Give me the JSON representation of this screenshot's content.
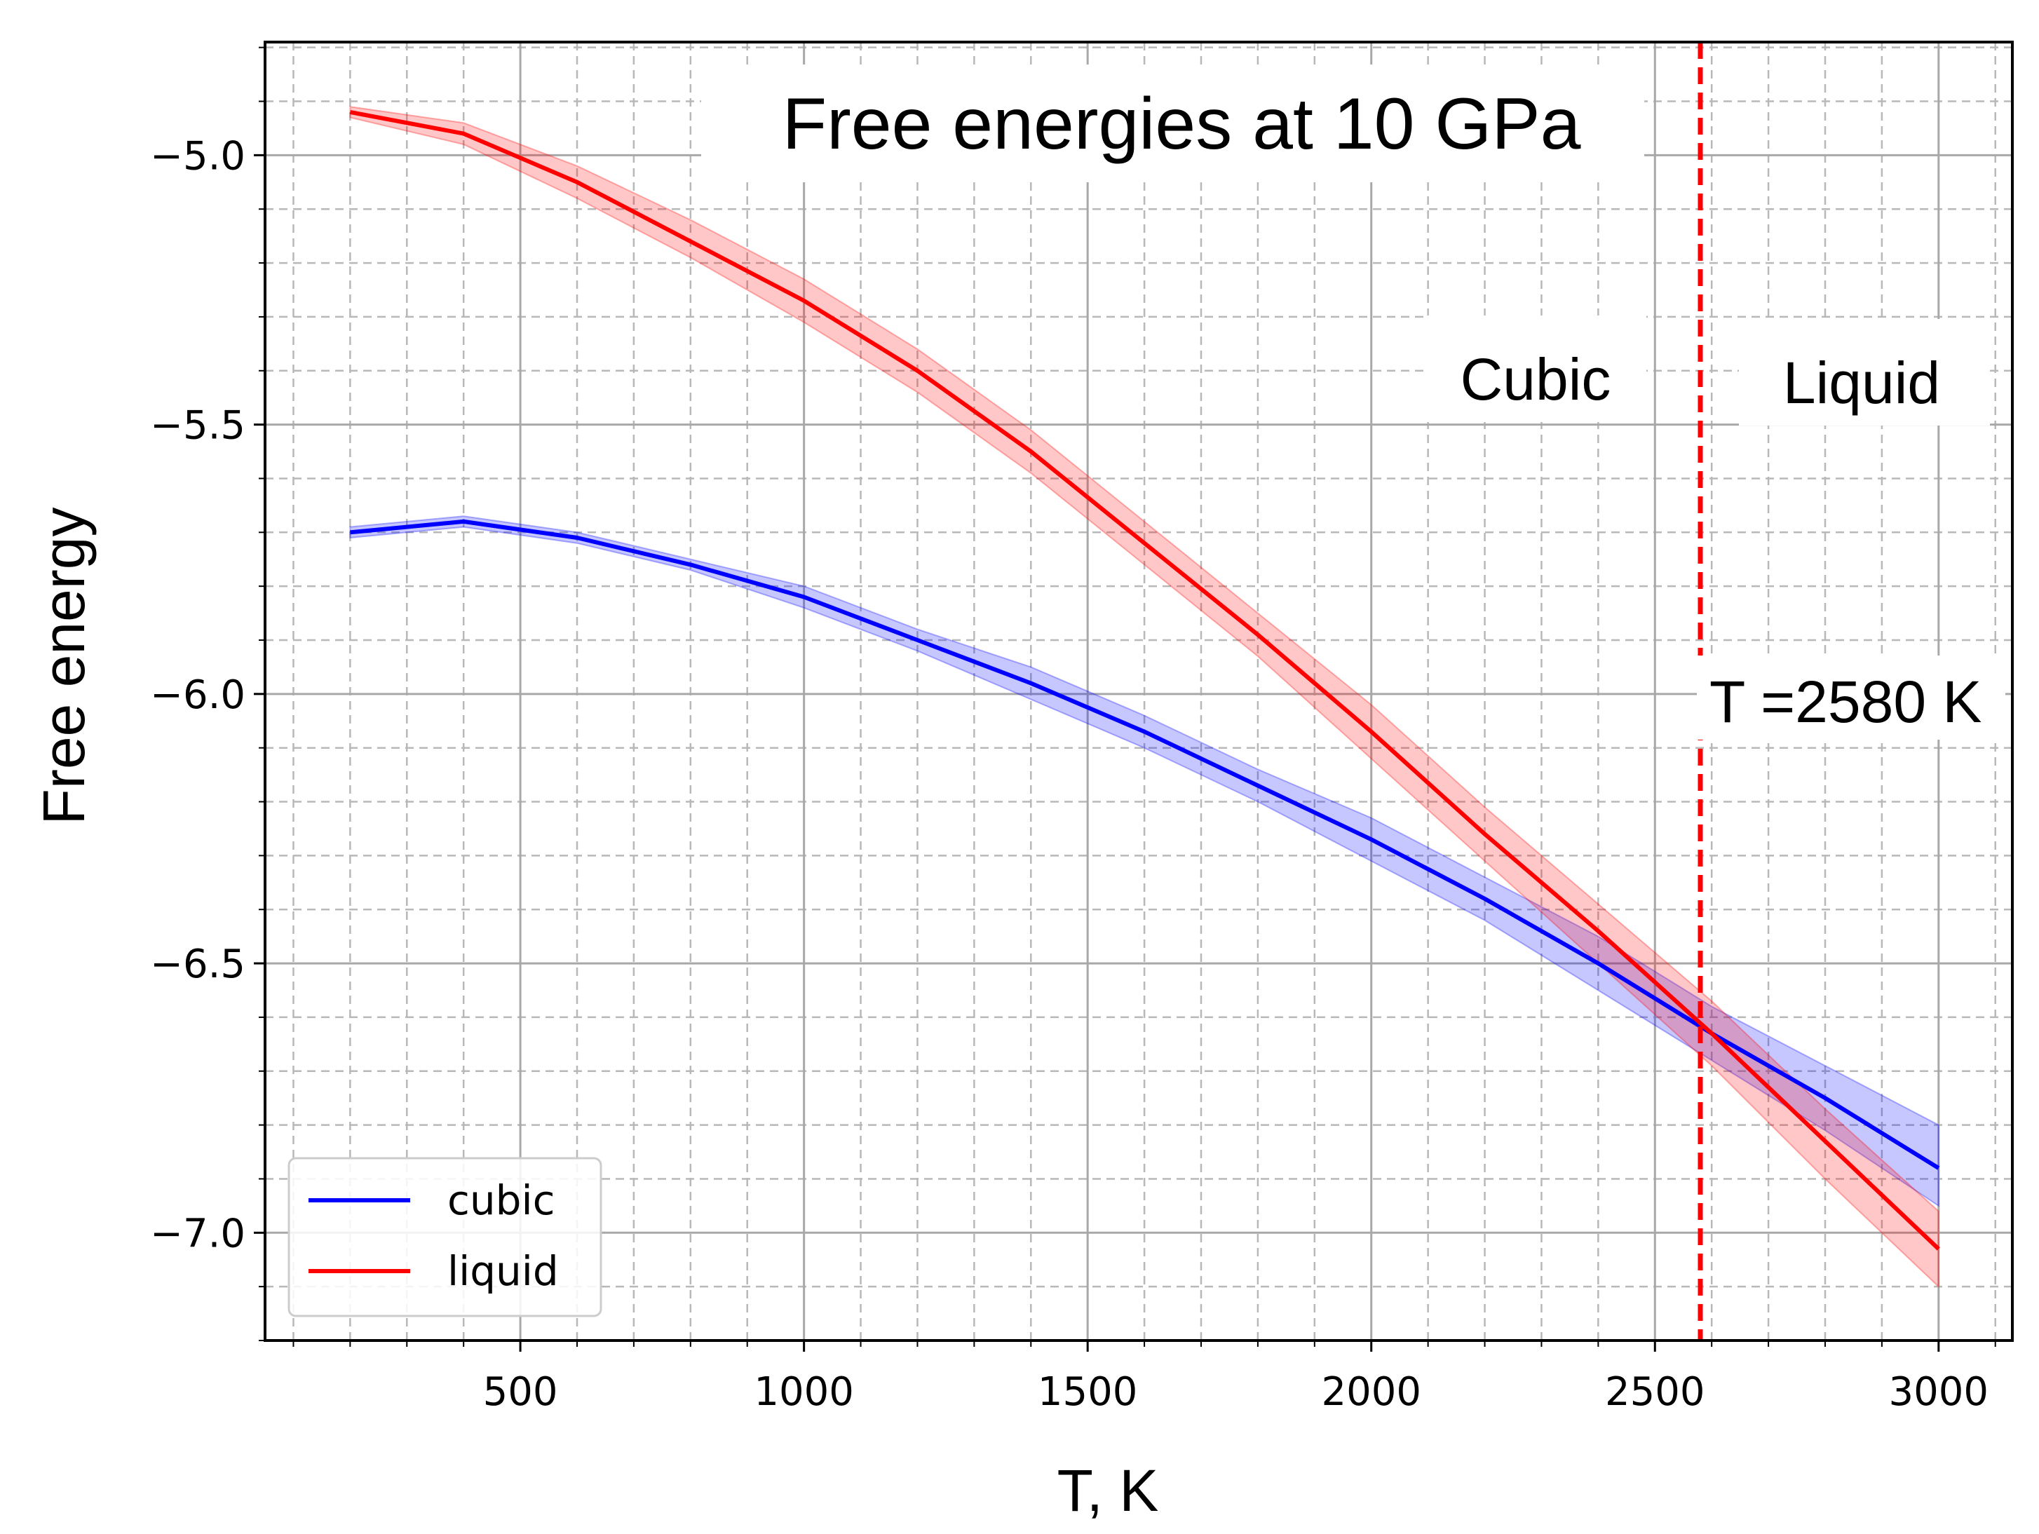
{
  "chart_data": {
    "type": "line",
    "title": "Free energies at 10 GPa",
    "xlabel": "T, K",
    "ylabel": "Free energy",
    "xlim": [
      50,
      3130
    ],
    "ylim": [
      -7.2,
      -4.79
    ],
    "xticks": [
      500,
      1000,
      1500,
      2000,
      2500,
      3000
    ],
    "xtick_labels": [
      "500",
      "1000",
      "1500",
      "2000",
      "2500",
      "3000"
    ],
    "yticks": [
      -5.0,
      -5.5,
      -6.0,
      -6.5,
      -7.0
    ],
    "ytick_labels": [
      "−5.0",
      "−5.5",
      "−6.0",
      "−6.5",
      "−7.0"
    ],
    "grid": true,
    "legend_position": "lower-left",
    "series": [
      {
        "name": "cubic",
        "color": "#0000ff",
        "band_color": "#0000ff",
        "x": [
          200,
          400,
          600,
          800,
          1000,
          1200,
          1400,
          1600,
          1800,
          2000,
          2200,
          2400,
          2600,
          2800,
          3000
        ],
        "y": [
          -5.7,
          -5.68,
          -5.71,
          -5.76,
          -5.82,
          -5.9,
          -5.98,
          -6.07,
          -6.17,
          -6.27,
          -6.38,
          -6.5,
          -6.63,
          -6.75,
          -6.88
        ],
        "y_lower": [
          -5.71,
          -5.69,
          -5.72,
          -5.77,
          -5.84,
          -5.92,
          -6.01,
          -6.1,
          -6.2,
          -6.31,
          -6.42,
          -6.55,
          -6.68,
          -6.81,
          -6.95
        ],
        "y_upper": [
          -5.69,
          -5.67,
          -5.7,
          -5.75,
          -5.8,
          -5.88,
          -5.95,
          -6.04,
          -6.14,
          -6.23,
          -6.34,
          -6.45,
          -6.58,
          -6.69,
          -6.8
        ]
      },
      {
        "name": "liquid",
        "color": "#ff0000",
        "band_color": "#ff0000",
        "x": [
          200,
          400,
          600,
          800,
          1000,
          1200,
          1400,
          1600,
          1800,
          2000,
          2200,
          2400,
          2600,
          2800,
          3000
        ],
        "y": [
          -4.92,
          -4.96,
          -5.05,
          -5.16,
          -5.27,
          -5.4,
          -5.55,
          -5.72,
          -5.89,
          -6.07,
          -6.26,
          -6.44,
          -6.63,
          -6.83,
          -7.03
        ],
        "y_lower": [
          -4.93,
          -4.98,
          -5.08,
          -5.19,
          -5.31,
          -5.44,
          -5.59,
          -5.76,
          -5.93,
          -6.12,
          -6.31,
          -6.5,
          -6.69,
          -6.9,
          -7.1
        ],
        "y_upper": [
          -4.91,
          -4.94,
          -5.02,
          -5.12,
          -5.23,
          -5.36,
          -5.51,
          -5.68,
          -5.85,
          -6.02,
          -6.21,
          -6.39,
          -6.57,
          -6.77,
          -6.96
        ]
      }
    ],
    "vline": {
      "x": 2580,
      "color": "#ff0000",
      "style": "dashed"
    },
    "annotations": {
      "transition": "T =2580 K",
      "left_region": "Cubic",
      "right_region": "Liquid"
    }
  }
}
